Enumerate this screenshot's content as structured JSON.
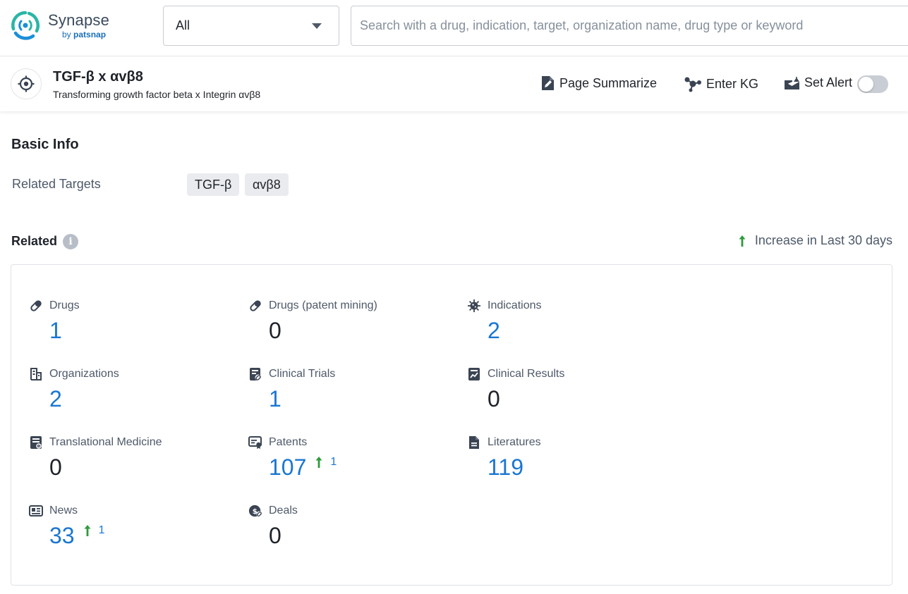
{
  "app": {
    "logo_name": "Synapse",
    "logo_by": "by",
    "logo_brand": "patsnap"
  },
  "search": {
    "scope": "All",
    "placeholder": "Search with a drug, indication, target, organization name, drug type or keyword"
  },
  "header": {
    "title": "TGF-β x αvβ8",
    "subtitle": "Transforming growth factor beta x Integrin αvβ8",
    "actions": {
      "summarize": "Page Summarize",
      "kg": "Enter KG",
      "alert": "Set Alert"
    },
    "alert_enabled": false
  },
  "basic_info": {
    "title": "Basic Info",
    "related_targets_label": "Related Targets",
    "targets": [
      "TGF-β",
      "αvβ8"
    ]
  },
  "related": {
    "title": "Related",
    "legend": "Increase in Last 30 days",
    "stats": [
      {
        "label": "Drugs",
        "value": "1",
        "icon": "pill-icon",
        "increase": ""
      },
      {
        "label": "Drugs (patent mining)",
        "value": "0",
        "icon": "pill-icon",
        "increase": ""
      },
      {
        "label": "Indications",
        "value": "2",
        "icon": "virus-icon",
        "increase": ""
      },
      {
        "label": "Organizations",
        "value": "2",
        "icon": "building-icon",
        "increase": ""
      },
      {
        "label": "Clinical Trials",
        "value": "1",
        "icon": "clinical-trial-icon",
        "increase": ""
      },
      {
        "label": "Clinical Results",
        "value": "0",
        "icon": "chart-report-icon",
        "increase": ""
      },
      {
        "label": "Translational Medicine",
        "value": "0",
        "icon": "translational-icon",
        "increase": ""
      },
      {
        "label": "Patents",
        "value": "107",
        "icon": "patent-icon",
        "increase": "1"
      },
      {
        "label": "Literatures",
        "value": "119",
        "icon": "document-icon",
        "increase": ""
      },
      {
        "label": "News",
        "value": "33",
        "icon": "newspaper-icon",
        "increase": "1"
      },
      {
        "label": "Deals",
        "value": "0",
        "icon": "deal-icon",
        "increase": ""
      }
    ]
  },
  "colors": {
    "link_blue": "#1a76d2",
    "increase_green": "#2e9b3c",
    "brand_teal": "#2bb5a6"
  }
}
